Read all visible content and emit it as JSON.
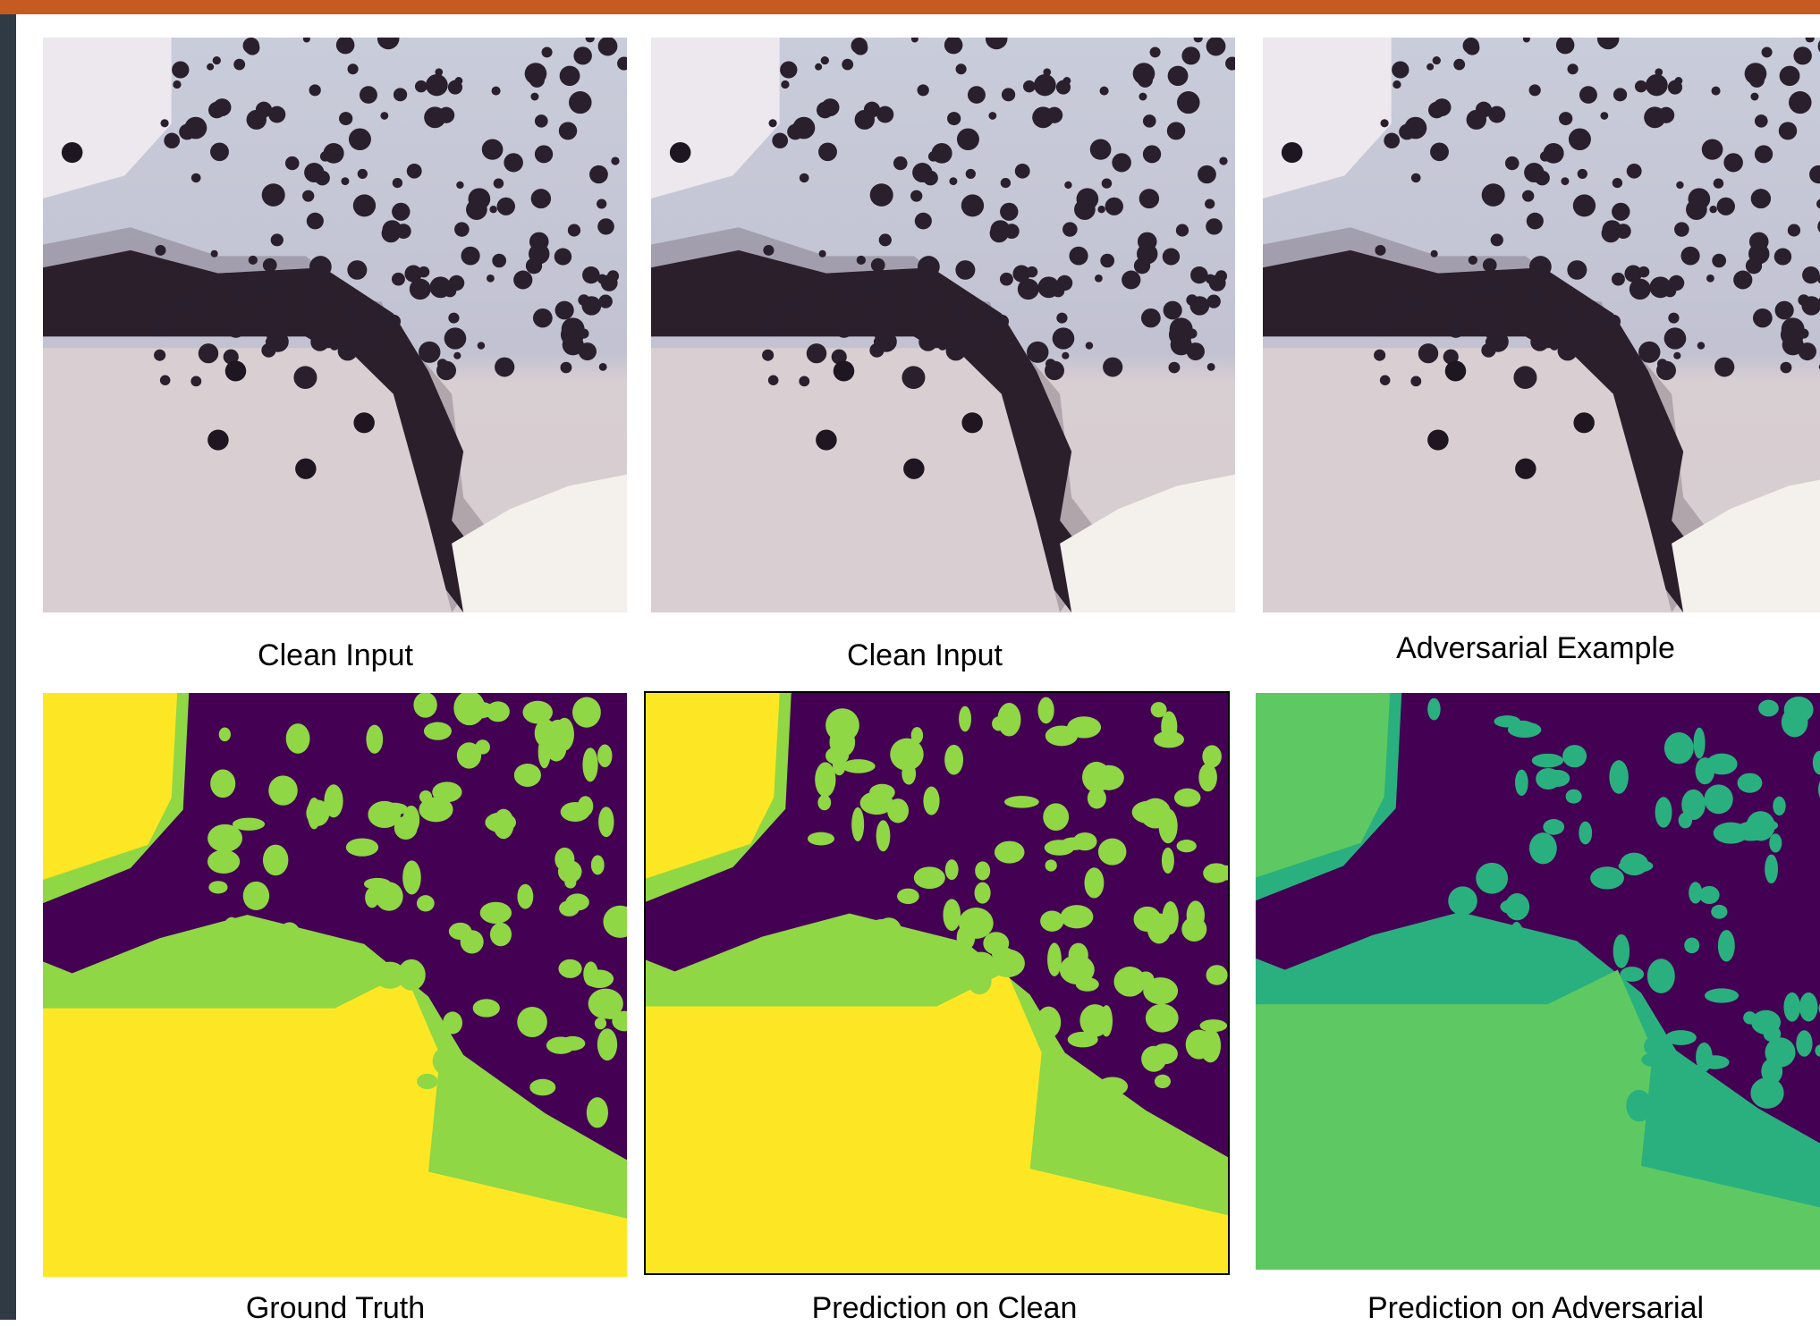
{
  "captions": {
    "top": [
      "Clean Input",
      "Clean Input",
      "Adversarial Example"
    ],
    "bottom": [
      "Ground Truth",
      "Prediction on Clean",
      "Prediction on Adversarial"
    ]
  }
}
